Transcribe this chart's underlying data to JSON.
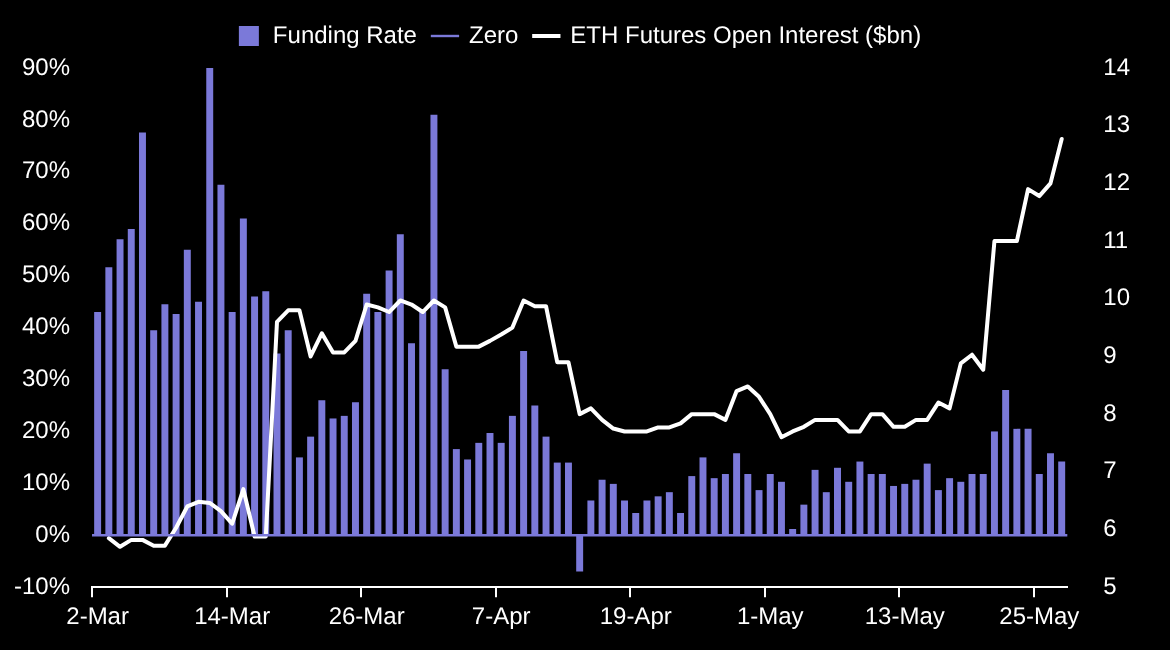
{
  "chart_data": {
    "type": "bar",
    "categories": [
      "2-Mar",
      null,
      null,
      null,
      null,
      null,
      null,
      null,
      null,
      null,
      null,
      null,
      "14-Mar",
      null,
      null,
      null,
      null,
      null,
      null,
      null,
      null,
      null,
      null,
      null,
      "26-Mar",
      null,
      null,
      null,
      null,
      null,
      null,
      null,
      null,
      null,
      null,
      null,
      "7-Apr",
      null,
      null,
      null,
      null,
      null,
      null,
      null,
      null,
      null,
      null,
      null,
      "19-Apr",
      null,
      null,
      null,
      null,
      null,
      null,
      null,
      null,
      null,
      null,
      null,
      "1-May",
      null,
      null,
      null,
      null,
      null,
      null,
      null,
      null,
      null,
      null,
      null,
      "13-May",
      null,
      null,
      null,
      null,
      null,
      null,
      null,
      null,
      null,
      null,
      null,
      "25-May",
      null,
      null
    ],
    "series": [
      {
        "name": "Funding Rate",
        "color": "#7b79d9",
        "values": [
          43,
          51.6,
          57,
          59,
          77.6,
          39.5,
          44.5,
          42.6,
          55,
          45,
          90,
          67.5,
          43,
          61,
          46,
          47,
          35,
          39.5,
          15,
          19,
          26,
          22.5,
          23,
          25.6,
          46.5,
          43,
          51,
          58,
          37,
          43,
          81,
          32,
          16.6,
          14.6,
          17.8,
          19.7,
          17.8,
          23,
          35.5,
          25,
          19,
          14,
          14,
          -7,
          6.7,
          10.7,
          9.9,
          6.7,
          4.3,
          6.7,
          7.5,
          8.3,
          4.3,
          11.4,
          15,
          11,
          11.8,
          15.8,
          11.8,
          8.7,
          11.8,
          10.3,
          1.2,
          5.9,
          12.6,
          8.3,
          13,
          10.3,
          14.2,
          11.8,
          11.8,
          9.5,
          9.9,
          10.7,
          13.8,
          8.7,
          11,
          10.3,
          11.8,
          11.8,
          20,
          28,
          20.5,
          20.5,
          11.8,
          15.8,
          14.2
        ]
      },
      {
        "name": "ETH Futures Open Interest ($bn)",
        "type": "line",
        "axis": "y2",
        "color": "#ffffff",
        "values": [
          null,
          5.85,
          5.7,
          5.82,
          5.82,
          5.72,
          5.72,
          6.03,
          6.4,
          6.48,
          6.46,
          6.32,
          6.1,
          6.7,
          5.88,
          5.88,
          9.6,
          9.8,
          9.8,
          9.0,
          9.4,
          9.07,
          9.07,
          9.27,
          9.9,
          9.85,
          9.77,
          9.97,
          9.9,
          9.77,
          9.97,
          9.85,
          9.17,
          9.17,
          9.17,
          9.27,
          9.38,
          9.5,
          9.97,
          9.87,
          9.87,
          8.9,
          8.9,
          8.0,
          8.1,
          7.9,
          7.75,
          7.7,
          7.7,
          7.7,
          7.77,
          7.77,
          7.84,
          8.0,
          8.0,
          8.0,
          7.9,
          8.4,
          8.48,
          8.3,
          8.0,
          7.6,
          7.7,
          7.78,
          7.9,
          7.9,
          7.9,
          7.7,
          7.7,
          8.0,
          8.0,
          7.78,
          7.78,
          7.9,
          7.9,
          8.2,
          8.1,
          8.88,
          9.03,
          8.77,
          11.0,
          11.0,
          11.0,
          11.9,
          11.78,
          12.0,
          12.77
        ]
      }
    ],
    "ylim": [
      -10,
      90
    ],
    "yticks": [
      {
        "value": -10,
        "label": "-10%"
      },
      {
        "value": 0,
        "label": "0%"
      },
      {
        "value": 10,
        "label": "10%"
      },
      {
        "value": 20,
        "label": "20%"
      },
      {
        "value": 30,
        "label": "30%"
      },
      {
        "value": 40,
        "label": "40%"
      },
      {
        "value": 50,
        "label": "50%"
      },
      {
        "value": 60,
        "label": "60%"
      },
      {
        "value": 70,
        "label": "70%"
      },
      {
        "value": 80,
        "label": "80%"
      },
      {
        "value": 90,
        "label": "90%"
      }
    ],
    "y2lim": [
      5,
      14
    ],
    "y2ticks": [
      5,
      6,
      7,
      8,
      9,
      10,
      11,
      12,
      13,
      14
    ],
    "ref_lines": [
      {
        "axis": "y",
        "value": 0,
        "label": "Zero",
        "color": "#7b79d9",
        "line_style": "solid"
      }
    ],
    "grid": false,
    "legend": "top",
    "marker": "none",
    "line_style": "solid"
  }
}
